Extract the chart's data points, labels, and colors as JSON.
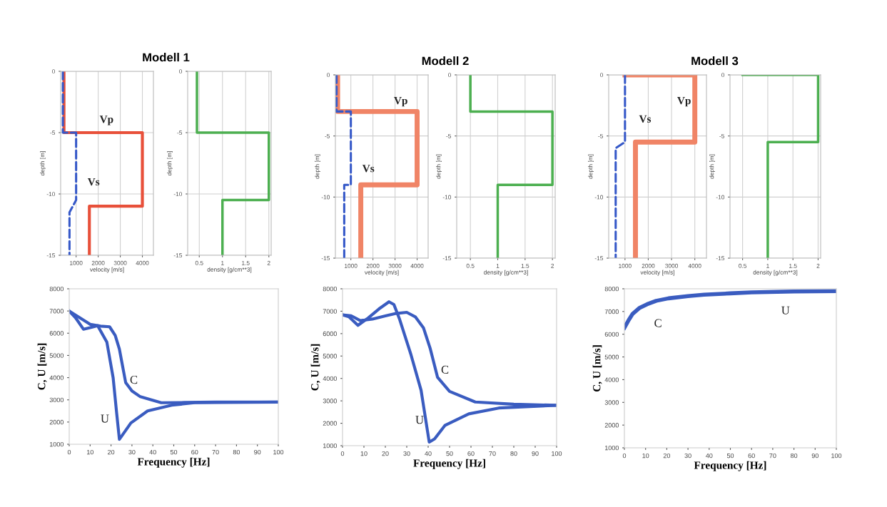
{
  "chart_data": [
    {
      "type": "line",
      "title": "Modell 1",
      "xlabel": "velocity [m/s]",
      "ylabel": "depth [m]",
      "xlim": [
        300,
        4500
      ],
      "xticks": [
        1000,
        2000,
        3000,
        4000
      ],
      "ylim": [
        -15,
        0
      ],
      "yticks": [
        0,
        -5,
        -10,
        -15
      ],
      "grid": true,
      "series": [
        {
          "name": "Vp",
          "color": "#e8503a",
          "line_style": "solid",
          "x": [
            450,
            450,
            4000,
            4000,
            1600,
            1600
          ],
          "values": [
            0,
            -5,
            -5,
            -11,
            -11,
            -15
          ]
        },
        {
          "name": "Vs",
          "color": "#3558c8",
          "line_style": "dashed",
          "x": [
            400,
            400,
            1000,
            1000,
            700,
            700
          ],
          "values": [
            0,
            -5,
            -5,
            -10.5,
            -11.5,
            -15
          ]
        }
      ]
    },
    {
      "type": "line",
      "xlabel": "density [g/cm**3]",
      "ylabel": "depth [m]",
      "xlim": [
        0.25,
        2.05
      ],
      "xticks": [
        0.5,
        1,
        1.5,
        2
      ],
      "ylim": [
        -15,
        0
      ],
      "yticks": [
        0,
        -5,
        -10,
        -15
      ],
      "grid": true,
      "series": [
        {
          "color": "#4caf50",
          "line_style": "solid",
          "x": [
            0.45,
            0.45,
            2,
            2,
            1,
            1
          ],
          "values": [
            0,
            -5,
            -5,
            -10.5,
            -10.5,
            -15
          ]
        }
      ]
    },
    {
      "type": "line",
      "title": "Modell 2",
      "xlabel": "velocity [m/s]",
      "ylabel": "depth [m]",
      "xlim": [
        300,
        4500
      ],
      "xticks": [
        1000,
        2000,
        3000,
        4000
      ],
      "ylim": [
        -15,
        0
      ],
      "yticks": [
        0,
        -5,
        -10,
        -15
      ],
      "grid": true,
      "series": [
        {
          "name": "Vp",
          "color": "#f08466",
          "line_style": "solid",
          "x": [
            400,
            400,
            4000,
            4000,
            1450,
            1450
          ],
          "values": [
            0,
            -3,
            -3,
            -9,
            -9,
            -15
          ]
        },
        {
          "name": "Vs",
          "color": "#3558c8",
          "line_style": "dashed",
          "x": [
            350,
            350,
            1000,
            1000,
            700,
            700
          ],
          "values": [
            0,
            -3,
            -3,
            -9,
            -9,
            -15
          ]
        }
      ]
    },
    {
      "type": "line",
      "xlabel": "density [g/cm**3]",
      "ylabel": "depth [m]",
      "xlim": [
        0.25,
        2.05
      ],
      "xticks": [
        0.5,
        1,
        1.5,
        2
      ],
      "ylim": [
        -15,
        0
      ],
      "yticks": [
        0,
        -5,
        -10,
        -15
      ],
      "grid": true,
      "series": [
        {
          "color": "#4caf50",
          "line_style": "solid",
          "x": [
            0.5,
            0.5,
            2,
            2,
            1,
            1
          ],
          "values": [
            0,
            -3,
            -3,
            -9,
            -9,
            -15
          ]
        }
      ]
    },
    {
      "type": "line",
      "title": "Modell 3",
      "xlabel": "velocity [m/s]",
      "ylabel": "depth [m]",
      "xlim": [
        300,
        4500
      ],
      "xticks": [
        1000,
        2000,
        3000,
        4000
      ],
      "ylim": [
        -15,
        0
      ],
      "yticks": [
        0,
        -5,
        -10,
        -15
      ],
      "grid": true,
      "series": [
        {
          "name": "Vp",
          "color": "#f08466",
          "line_style": "solid",
          "x": [
            1000,
            4000,
            4000,
            1450,
            1450
          ],
          "values": [
            0,
            0,
            -5.5,
            -5.5,
            -15
          ]
        },
        {
          "name": "Vs",
          "color": "#3558c8",
          "line_style": "dashed",
          "x": [
            1000,
            1000,
            600,
            600
          ],
          "values": [
            0,
            -5.5,
            -6,
            -15
          ]
        }
      ]
    },
    {
      "type": "line",
      "xlabel": "density [g/cm**3]",
      "ylabel": "depth [m]",
      "xlim": [
        0.25,
        2.05
      ],
      "xticks": [
        0.5,
        1,
        1.5,
        2
      ],
      "ylim": [
        -15,
        0
      ],
      "yticks": [
        0,
        -5,
        -10,
        -15
      ],
      "grid": true,
      "series": [
        {
          "color": "#4caf50",
          "line_style": "solid",
          "x": [
            0.5,
            2,
            2,
            1,
            1
          ],
          "values": [
            0,
            0,
            -5.5,
            -5.5,
            -15
          ]
        }
      ]
    },
    {
      "type": "line",
      "xlabel": "Frequency [Hz]",
      "ylabel": "C, U [m/s]",
      "xlim": [
        0,
        100
      ],
      "xticks": [
        0,
        10,
        20,
        30,
        40,
        50,
        60,
        70,
        80,
        90,
        100
      ],
      "ylim": [
        1000,
        8000
      ],
      "yticks": [
        1000,
        2000,
        3000,
        4000,
        5000,
        6000,
        7000,
        8000
      ],
      "grid": false,
      "series": [
        {
          "name": "C",
          "color": "#3a5cc0",
          "line_style": "solid",
          "x": [
            0,
            5,
            10,
            15,
            19.3,
            22,
            24,
            27,
            30,
            34,
            44,
            55,
            70,
            100
          ],
          "values": [
            7000,
            6700,
            6400,
            6320,
            6290,
            5900,
            5280,
            3780,
            3400,
            3140,
            2870,
            2880,
            2900,
            2900
          ]
        },
        {
          "name": "U",
          "color": "#3a5cc0",
          "line_style": "solid",
          "x": [
            0,
            3,
            6.8,
            10,
            13.6,
            18,
            21,
            22.7,
            24,
            29.5,
            37.5,
            49,
            60,
            100
          ],
          "values": [
            7000,
            6700,
            6180,
            6250,
            6340,
            5600,
            4000,
            2390,
            1220,
            1960,
            2500,
            2760,
            2870,
            2900
          ]
        }
      ]
    },
    {
      "type": "line",
      "xlabel": "Frequency [Hz]",
      "ylabel": "C, U [m/s]",
      "xlim": [
        0,
        100
      ],
      "xticks": [
        0,
        10,
        20,
        30,
        40,
        50,
        60,
        70,
        80,
        90,
        100
      ],
      "ylim": [
        1000,
        8000
      ],
      "yticks": [
        1000,
        2000,
        3000,
        4000,
        5000,
        6000,
        7000,
        8000
      ],
      "grid": false,
      "series": [
        {
          "name": "C",
          "color": "#3a5cc0",
          "line_style": "solid",
          "x": [
            0,
            4,
            8.3,
            14,
            20,
            25,
            30,
            34,
            37.8,
            41,
            44.4,
            50,
            62,
            80,
            100
          ],
          "values": [
            6840,
            6800,
            6580,
            6650,
            6790,
            6900,
            6950,
            6750,
            6260,
            5320,
            4050,
            3420,
            2950,
            2850,
            2800
          ]
        },
        {
          "name": "U",
          "color": "#3a5cc0",
          "line_style": "solid",
          "x": [
            0,
            3,
            7.2,
            12,
            17,
            21.7,
            24,
            26.7,
            32,
            36.7,
            40.5,
            43,
            47.8,
            59,
            73,
            100
          ],
          "values": [
            6840,
            6750,
            6370,
            6700,
            7100,
            7420,
            7300,
            6630,
            5050,
            3470,
            1160,
            1300,
            1900,
            2420,
            2680,
            2800
          ]
        }
      ]
    },
    {
      "type": "line",
      "xlabel": "Frequency [Hz]",
      "ylabel": "C, U [m/s]",
      "xlim": [
        0,
        100
      ],
      "xticks": [
        0,
        10,
        20,
        30,
        40,
        50,
        60,
        70,
        80,
        90,
        100
      ],
      "ylim": [
        1000,
        8000
      ],
      "yticks": [
        1000,
        2000,
        3000,
        4000,
        5000,
        6000,
        7000,
        8000
      ],
      "grid": false,
      "series": [
        {
          "color": "#3a5cc0",
          "line_style": "solid",
          "x": [
            0,
            2,
            3.9,
            7,
            10.7,
            15,
            20.8,
            30,
            37.6,
            50,
            60,
            80,
            100
          ],
          "values": [
            6280,
            6620,
            6900,
            7150,
            7320,
            7470,
            7580,
            7680,
            7740,
            7800,
            7840,
            7880,
            7900
          ]
        }
      ],
      "annotations": [
        "C",
        "U"
      ]
    }
  ]
}
